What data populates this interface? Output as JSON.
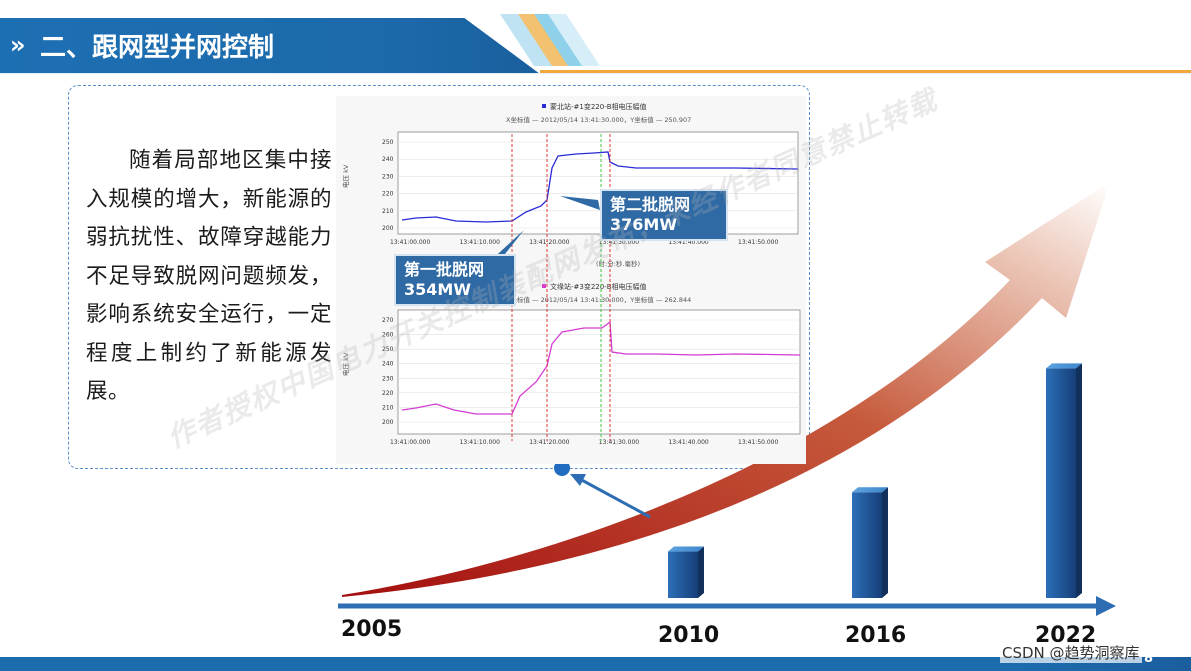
{
  "header": {
    "arrow": "»",
    "title": "二、跟网型并网控制"
  },
  "body_text": "随着局部地区集中接入规模的增大，新能源的弱抗扰性、故障穿越能力不足导致脱网问题频发，影响系统安全运行，一定程度上制约了新能源发展。",
  "top_chart": {
    "legend": "蒙北站-#1变220-B相电压幅值",
    "subtitle": "X坐标值 — 2012/05/14 13:41:30.000，Y坐标值 — 250.907",
    "ylabel": "电压\nkV",
    "yticks": [
      "250",
      "240",
      "230",
      "220",
      "210",
      "200"
    ],
    "xticks": [
      "13:41:00.000",
      "13:41:10.000",
      "13:41:20.000",
      "13:41:30.000",
      "13:41:40.000",
      "13:41:50.000"
    ],
    "xlabel": "(时:分:秒.毫秒)"
  },
  "bottom_chart": {
    "legend": "文缘站-#3变220-B相电压幅值",
    "subtitle": "X坐标值 — 2012/05/14 13:41:30.000，Y坐标值 — 262.844",
    "ylabel": "电压\nkV",
    "yticks": [
      "270",
      "260",
      "250",
      "240",
      "230",
      "220",
      "210",
      "200"
    ],
    "xticks": [
      "13:41:00.000",
      "13:41:10.000",
      "13:41:20.000",
      "13:41:30.000",
      "13:41:40.000",
      "13:41:50.000"
    ]
  },
  "callouts": {
    "first": {
      "line1": "第一批脱网",
      "line2": "354MW"
    },
    "second": {
      "line1": "第二批脱网",
      "line2": "376MW"
    }
  },
  "timeline": {
    "years": [
      "2005",
      "2010",
      "2016",
      "2022"
    ],
    "bar_levels": [
      0.0,
      0.18,
      0.41,
      0.89
    ]
  },
  "watermarks": {
    "center": "作者授权中国电力开关控制装配网发布，未经作者同意禁止转载"
  },
  "footer": {
    "page": "8",
    "csdn": "CSDN @趋势洞察库"
  },
  "colors": {
    "header_blue": "#1d6fb3",
    "accent_orange": "#f0a93a",
    "callout_blue": "#2f6aa5",
    "series_top": "#2a2ad6",
    "series_bottom": "#d23cd2",
    "marker_red": "#e02020",
    "marker_green": "#2fbf2f"
  }
}
